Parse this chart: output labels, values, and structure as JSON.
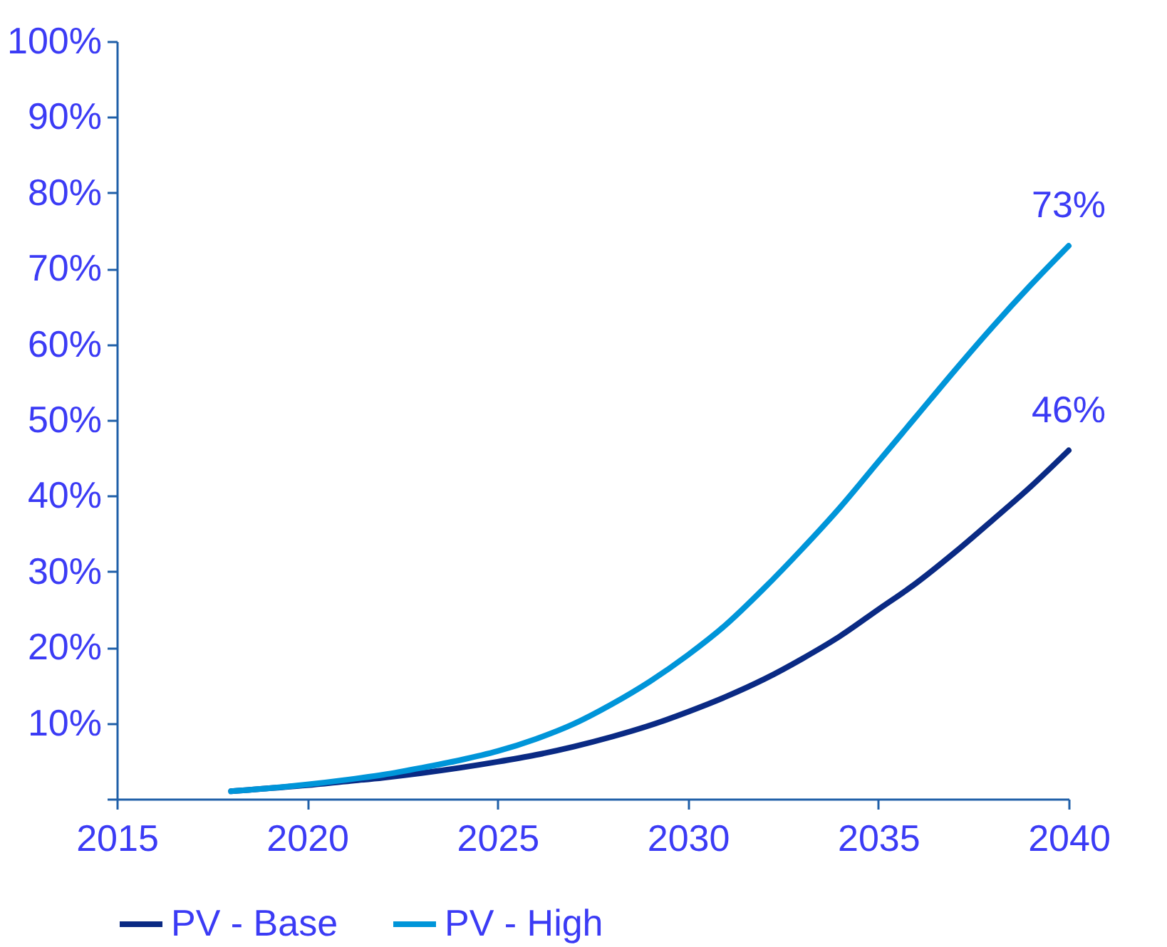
{
  "chart_data": {
    "type": "line",
    "x": [
      2018,
      2019,
      2020,
      2021,
      2022,
      2023,
      2024,
      2025,
      2026,
      2027,
      2028,
      2029,
      2030,
      2031,
      2032,
      2033,
      2034,
      2035,
      2036,
      2037,
      2038,
      2039,
      2040
    ],
    "series": [
      {
        "name": "PV - Base",
        "color": "#0a2a84",
        "values": [
          1,
          1.4,
          1.8,
          2.3,
          2.8,
          3.4,
          4.1,
          4.9,
          5.8,
          6.9,
          8.2,
          9.7,
          11.5,
          13.5,
          15.8,
          18.5,
          21.5,
          25,
          28.5,
          32.5,
          36.8,
          41.2,
          46
        ],
        "value_labels": [
          null,
          null,
          null,
          null,
          null,
          null,
          null,
          null,
          null,
          null,
          null,
          null,
          null,
          null,
          null,
          null,
          null,
          null,
          null,
          null,
          null,
          null,
          "46%"
        ]
      },
      {
        "name": "PV - High",
        "color": "#0095d9",
        "values": [
          1,
          1.4,
          1.9,
          2.5,
          3.2,
          4.1,
          5.1,
          6.3,
          7.9,
          9.9,
          12.5,
          15.5,
          19,
          23,
          27.8,
          33,
          38.5,
          44.5,
          50.5,
          56.5,
          62.3,
          67.8,
          73
        ],
        "value_labels": [
          null,
          null,
          null,
          null,
          null,
          null,
          null,
          null,
          null,
          null,
          null,
          null,
          null,
          null,
          null,
          null,
          null,
          null,
          null,
          null,
          null,
          null,
          "73%"
        ]
      }
    ],
    "xlim": [
      2015,
      2040
    ],
    "xticks": [
      2015,
      2020,
      2025,
      2030,
      2035,
      2040
    ],
    "ylim": [
      0,
      100
    ],
    "yticks": [
      {
        "value": 0,
        "label": null
      },
      {
        "value": 10,
        "label": "10%"
      },
      {
        "value": 20,
        "label": "20%"
      },
      {
        "value": 30,
        "label": "30%"
      },
      {
        "value": 40,
        "label": "40%"
      },
      {
        "value": 50,
        "label": "50%"
      },
      {
        "value": 60,
        "label": "60%"
      },
      {
        "value": 70,
        "label": "70%"
      },
      {
        "value": 80,
        "label": "80%"
      },
      {
        "value": 90,
        "label": "90%"
      },
      {
        "value": 100,
        "label": "100%"
      }
    ],
    "grid": false,
    "legend": "bottom",
    "marker": "none",
    "line_style": "solid"
  }
}
